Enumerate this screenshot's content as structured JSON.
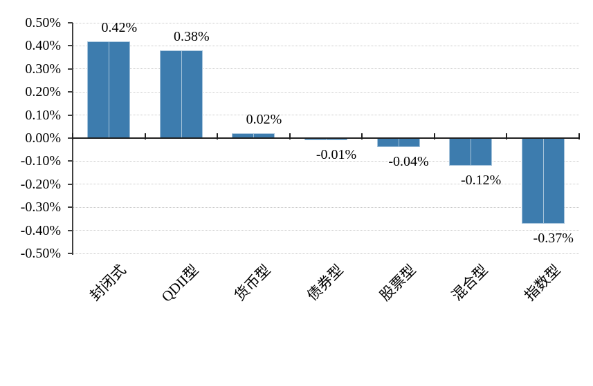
{
  "chart_data": {
    "type": "bar",
    "title": "",
    "xlabel": "",
    "ylabel": "",
    "categories": [
      "封闭式",
      "QDII型",
      "货币型",
      "债券型",
      "股票型",
      "混合型",
      "指数型"
    ],
    "values": [
      0.42,
      0.38,
      0.02,
      -0.01,
      -0.04,
      -0.12,
      -0.37
    ],
    "data_labels": [
      "0.42%",
      "0.38%",
      "0.02%",
      "-0.01%",
      "-0.04%",
      "-0.12%",
      "-0.37%"
    ],
    "ylim": [
      -0.5,
      0.5
    ],
    "ytick_step": 0.1,
    "ytick_labels": [
      "0.50%",
      "0.40%",
      "0.30%",
      "0.20%",
      "0.10%",
      "0.00%",
      "-0.10%",
      "-0.20%",
      "-0.30%",
      "-0.40%",
      "-0.50%"
    ],
    "grid": "horizontal-dotted",
    "legend": "none",
    "bar_color": "#3d7cae",
    "bar_edge_color": "#badicolor",
    "axis_color": "#3f3f3f",
    "zero_line_color": "#1f1f1f",
    "gridline_color": "#c9c9c9"
  }
}
